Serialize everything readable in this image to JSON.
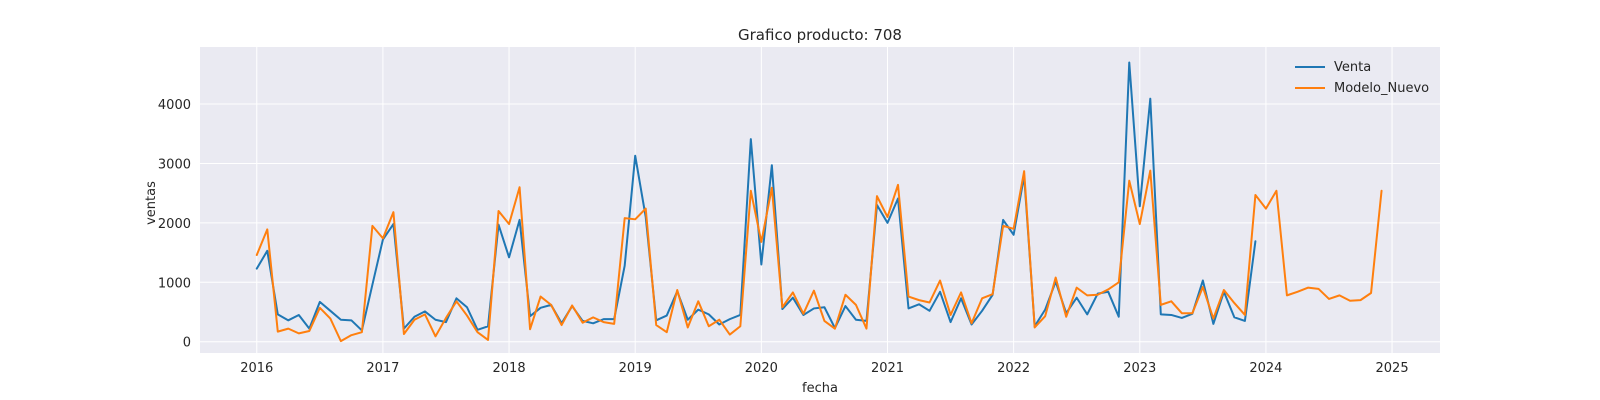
{
  "chart_data": {
    "type": "line",
    "title": "Grafico producto: 708",
    "xlabel": "fecha",
    "ylabel": "ventas",
    "xlim": [
      2015.55,
      2025.38
    ],
    "ylim": [
      -190,
      4960
    ],
    "x_ticks": [
      "2016",
      "2017",
      "2018",
      "2019",
      "2020",
      "2021",
      "2022",
      "2023",
      "2024",
      "2025"
    ],
    "y_ticks": [
      0,
      1000,
      2000,
      3000,
      4000
    ],
    "grid": true,
    "legend": "top-right",
    "series": [
      {
        "name": "Venta",
        "color": "#1f77b4",
        "start": 2016.0,
        "values": [
          1230,
          1530,
          460,
          360,
          450,
          220,
          670,
          520,
          370,
          360,
          190,
          960,
          1720,
          1980,
          220,
          420,
          510,
          370,
          330,
          730,
          580,
          200,
          260,
          1970,
          1420,
          2050,
          430,
          570,
          620,
          310,
          600,
          350,
          310,
          380,
          380,
          1280,
          3130,
          2100,
          360,
          440,
          850,
          370,
          540,
          460,
          290,
          380,
          450,
          3410,
          1300,
          2970,
          550,
          740,
          450,
          560,
          580,
          230,
          600,
          370,
          350,
          2300,
          2000,
          2410,
          560,
          630,
          520,
          840,
          330,
          730,
          290,
          520,
          790,
          2050,
          1800,
          2790,
          260,
          540,
          1010,
          480,
          740,
          460,
          810,
          840,
          420,
          4700,
          2280,
          4090,
          460,
          450,
          400,
          470,
          1030,
          300,
          840,
          410,
          350,
          1690
        ]
      },
      {
        "name": "Modelo_Nuevo",
        "color": "#ff7f0e",
        "start": 2016.0,
        "values": [
          1460,
          1890,
          170,
          220,
          140,
          180,
          570,
          390,
          10,
          110,
          160,
          1950,
          1740,
          2180,
          130,
          370,
          460,
          90,
          400,
          680,
          440,
          160,
          30,
          2200,
          1980,
          2600,
          210,
          760,
          620,
          280,
          610,
          320,
          410,
          330,
          300,
          2080,
          2060,
          2240,
          280,
          160,
          870,
          240,
          680,
          260,
          370,
          120,
          260,
          2540,
          1680,
          2590,
          580,
          830,
          470,
          860,
          350,
          220,
          790,
          620,
          220,
          2450,
          2100,
          2640,
          760,
          700,
          660,
          1030,
          450,
          830,
          310,
          730,
          800,
          1950,
          1900,
          2870,
          240,
          430,
          1080,
          420,
          910,
          780,
          790,
          880,
          1000,
          2710,
          1980,
          2880,
          620,
          680,
          480,
          480,
          920,
          390,
          870,
          650,
          450,
          2470,
          2240,
          2540,
          780,
          840,
          910,
          890,
          720,
          780,
          690,
          700,
          820,
          2540
        ]
      }
    ]
  }
}
